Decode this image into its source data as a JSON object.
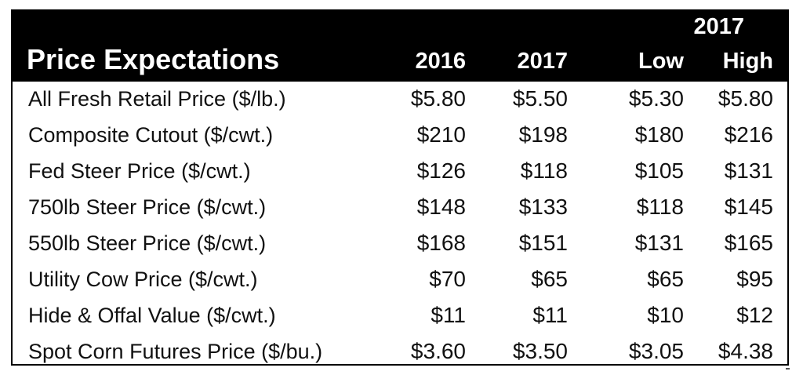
{
  "table": {
    "title": "Price Expectations",
    "group_header": "2017",
    "columns": [
      "2016",
      "2017",
      "Low",
      "High"
    ],
    "rows": [
      {
        "label": "All Fresh Retail Price ($/lb.)",
        "values": [
          "$5.80",
          "$5.50",
          "$5.30",
          "$5.80"
        ]
      },
      {
        "label": "Composite Cutout ($/cwt.)",
        "values": [
          "$210",
          "$198",
          "$180",
          "$216"
        ]
      },
      {
        "label": "Fed Steer Price ($/cwt.)",
        "values": [
          "$126",
          "$118",
          "$105",
          "$131"
        ]
      },
      {
        "label": "750lb Steer Price ($/cwt.)",
        "values": [
          "$148",
          "$133",
          "$118",
          "$145"
        ]
      },
      {
        "label": "550lb Steer Price ($/cwt.)",
        "values": [
          "$168",
          "$151",
          "$131",
          "$165"
        ]
      },
      {
        "label": "Utility Cow Price ($/cwt.)",
        "values": [
          "$70",
          "$65",
          "$65",
          "$95"
        ]
      },
      {
        "label": "Hide & Offal Value ($/cwt.)",
        "values": [
          "$11",
          "$11",
          "$10",
          "$12"
        ]
      },
      {
        "label": "Spot Corn Futures Price ($/bu.)",
        "values": [
          "$3.60",
          "$3.50",
          "$3.05",
          "$4.38"
        ]
      }
    ]
  }
}
